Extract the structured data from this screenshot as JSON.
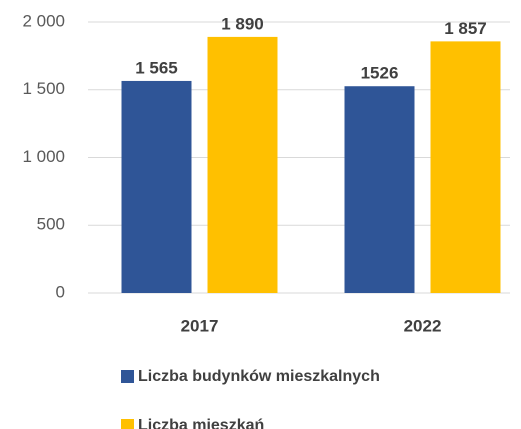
{
  "chart_data": {
    "type": "bar",
    "categories": [
      "2017",
      "2022"
    ],
    "series": [
      {
        "name": "Liczba budynków mieszkalnych",
        "color": "#2f5597",
        "values": [
          1565,
          1526
        ],
        "value_labels": [
          "1 565",
          "1526"
        ]
      },
      {
        "name": "Liczba mieszkań",
        "color": "#ffc000",
        "values": [
          1890,
          1857
        ],
        "value_labels": [
          "1 890",
          "1 857"
        ]
      }
    ],
    "ylim": [
      0,
      2000
    ],
    "yticks": [
      {
        "value": 0,
        "label": "0"
      },
      {
        "value": 500,
        "label": "500"
      },
      {
        "value": 1000,
        "label": "1 000"
      },
      {
        "value": 1500,
        "label": "1 500"
      },
      {
        "value": 2000,
        "label": "2 000"
      }
    ],
    "grid": true,
    "legend": "bottom"
  }
}
